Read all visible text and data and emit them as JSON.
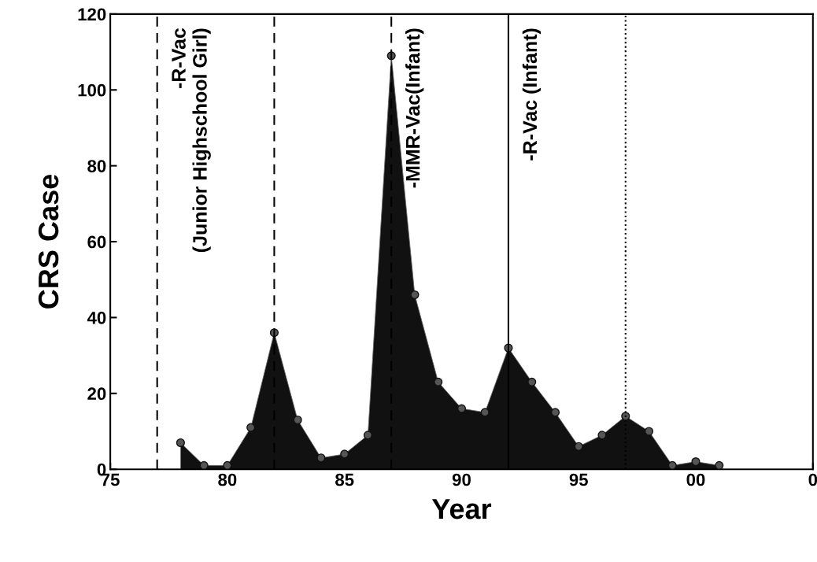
{
  "chart_data": {
    "type": "area",
    "xlabel": "Year",
    "ylabel": "CRS Case",
    "x": [
      "1978",
      "1979",
      "1980",
      "1981",
      "1982",
      "1983",
      "1984",
      "1985",
      "1986",
      "1987",
      "1988",
      "1989",
      "1990",
      "1991",
      "1992",
      "1993",
      "1994",
      "1995",
      "1996",
      "1997",
      "1998",
      "1999",
      "2000",
      "2001"
    ],
    "series": [
      {
        "color": "#111111",
        "values": [
          7,
          1,
          1,
          11,
          36,
          13,
          3,
          4,
          9,
          109,
          46,
          23,
          16,
          15,
          32,
          23,
          15,
          6,
          9,
          14,
          10,
          1,
          2,
          1
        ]
      }
    ],
    "marker": "circle",
    "xlim": [
      "1975",
      "2005"
    ],
    "xticks": [
      {
        "value": "1975",
        "label": "75"
      },
      {
        "value": "1980",
        "label": "80"
      },
      {
        "value": "1985",
        "label": "85"
      },
      {
        "value": "1990",
        "label": "90"
      },
      {
        "value": "1995",
        "label": "95"
      },
      {
        "value": "2000",
        "label": "00"
      },
      {
        "value": "2005",
        "label": "0"
      }
    ],
    "ylim": [
      0,
      120
    ],
    "yticks": [
      0,
      20,
      40,
      60,
      80,
      100,
      120
    ],
    "grid": false,
    "legend": false,
    "ref_lines": [
      {
        "axis": "x",
        "value": "1977",
        "label": "-R-Vac\n(Junior Highschool Girl)",
        "line_style": "dashed",
        "color": "#000000"
      },
      {
        "axis": "x",
        "value": "1982",
        "line_style": "dashed",
        "color": "#000000"
      },
      {
        "axis": "x",
        "value": "1987",
        "label": "-MMR-Vac(Infant)",
        "line_style": "dashed",
        "color": "#000000"
      },
      {
        "axis": "x",
        "value": "1992",
        "label": "-R-Vac (Infant)",
        "line_style": "solid",
        "color": "#000000"
      },
      {
        "axis": "x",
        "value": "1997",
        "line_style": "dotted",
        "color": "#000000"
      }
    ]
  }
}
